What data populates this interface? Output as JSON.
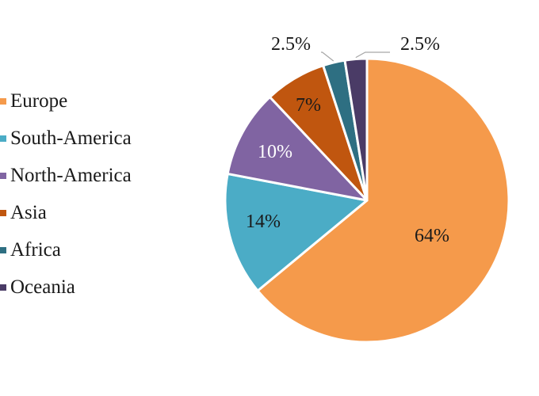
{
  "chart_data": {
    "type": "pie",
    "title": "",
    "categories": [
      "Europe",
      "South-America",
      "North-America",
      "Asia",
      "Africa",
      "Oceania"
    ],
    "values": [
      64,
      14,
      10,
      7,
      2.5,
      2.5
    ],
    "labels": [
      "64%",
      "14%",
      "10%",
      "7%",
      "2.5%",
      "2.5%"
    ],
    "colors": [
      "#F59A4B",
      "#4BACC6",
      "#8064A2",
      "#C0560F",
      "#2E6F82",
      "#4A3B66"
    ],
    "start_angle_deg": 0,
    "direction": "clockwise",
    "legend_position": "left"
  }
}
